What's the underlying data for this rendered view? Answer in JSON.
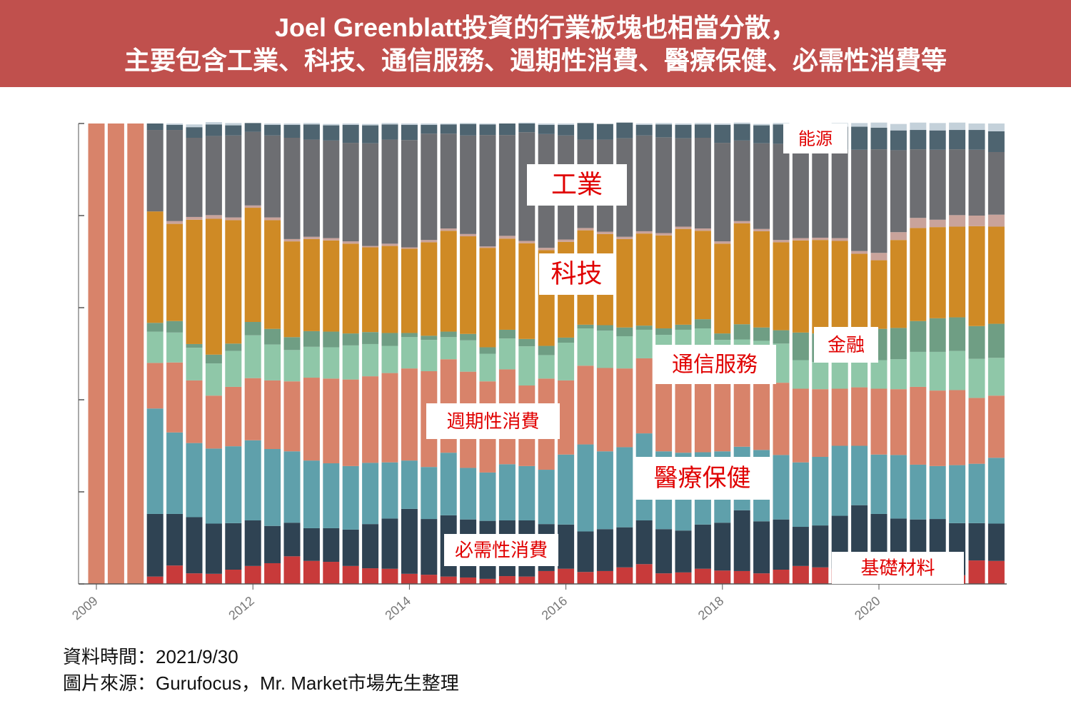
{
  "chart_data": {
    "type": "stacked_bar",
    "title": "Joel Greenblatt投資的行業板塊也相當分散，\n主要包含工業、科技、通信服務、週期性消費、醫療保健、必需性消費等",
    "notes": [
      "資料時間：2021/9/30",
      "圖片來源：Gurufocus，Mr. Market市場先生整理"
    ],
    "categories": [
      "2009",
      null,
      null,
      null,
      null,
      null,
      null,
      null,
      "2012",
      null,
      null,
      null,
      null,
      null,
      null,
      null,
      "2014",
      null,
      null,
      null,
      null,
      null,
      null,
      null,
      "2016",
      null,
      null,
      null,
      null,
      null,
      null,
      null,
      "2018",
      null,
      null,
      null,
      null,
      null,
      null,
      null,
      "2020",
      null,
      null,
      null,
      null,
      null,
      null
    ],
    "ylim": [
      0,
      100
    ],
    "yticks": [
      0,
      20,
      40,
      60,
      80,
      100
    ],
    "series": [
      {
        "name": "基礎材料",
        "color": "#c83a3a",
        "values": [
          0,
          0,
          0,
          1.6,
          4.0,
          2.3,
          2.2,
          3.1,
          3.9,
          4.5,
          6.0,
          5.0,
          4.8,
          3.9,
          3.4,
          3.3,
          2.2,
          2.0,
          1.6,
          1.4,
          1.1,
          1.7,
          1.6,
          2.8,
          3.3,
          2.6,
          2.8,
          3.6,
          4.3,
          2.3,
          2.5,
          3.3,
          2.9,
          2.8,
          2.3,
          3.1,
          3.9,
          3.6,
          3.3,
          2.8,
          2.6,
          2.3,
          1.9,
          1.7,
          1.9,
          5.1,
          5.0
        ]
      },
      {
        "name": "必需性消費",
        "color": "#2f4353",
        "values": [
          0,
          0,
          0,
          13.6,
          11.2,
          12.2,
          10.9,
          10.1,
          9.9,
          8.1,
          7.3,
          7.1,
          7.3,
          7.9,
          9.6,
          10.9,
          14.1,
          12.1,
          13.3,
          12.6,
          12.6,
          12.1,
          12.2,
          10.2,
          9.6,
          8.8,
          9.1,
          8.7,
          9.5,
          9.6,
          9.1,
          9.6,
          10.4,
          13.2,
          11.3,
          10.9,
          8.5,
          9.1,
          11.5,
          14.3,
          12.6,
          11.9,
          12.1,
          12.4,
          11.3,
          8.1,
          8.1
        ]
      },
      {
        "name": "醫療保健",
        "color": "#5fa0ab",
        "values": [
          0,
          0,
          0,
          22.9,
          17.7,
          16.1,
          16.3,
          16.7,
          17.4,
          16.7,
          15.5,
          14.7,
          14.1,
          13.8,
          13.3,
          12.2,
          10.5,
          11.3,
          13.6,
          11.2,
          10.5,
          12.2,
          11.8,
          11.8,
          15.2,
          18.9,
          16.9,
          17.4,
          18.9,
          16.9,
          16.9,
          15.7,
          15.5,
          13.8,
          15.5,
          14.0,
          14.0,
          14.9,
          15.2,
          12.9,
          12.9,
          13.8,
          11.9,
          11.5,
          12.6,
          12.9,
          14.3
        ]
      },
      {
        "name": "週期性消費",
        "color": "#d8836a",
        "values": [
          100,
          100,
          100,
          9.9,
          15.2,
          13.6,
          11.5,
          12.9,
          13.5,
          14.9,
          15.2,
          18.0,
          18.4,
          18.8,
          18.8,
          19.4,
          20.0,
          20.8,
          20.3,
          20.9,
          19.8,
          20.6,
          17.5,
          19.8,
          16.1,
          17.1,
          18.1,
          17.1,
          16.3,
          18.0,
          18.3,
          18.8,
          17.5,
          17.7,
          18.0,
          15.7,
          16.0,
          14.7,
          12.4,
          12.7,
          14.3,
          14.3,
          16.9,
          16.4,
          16.3,
          14.3,
          13.5
        ]
      },
      {
        "name": "通信服務",
        "color": "#8fc7a8",
        "values": [
          0,
          0,
          0,
          6.8,
          6.5,
          7.1,
          7.0,
          7.8,
          9.3,
          7.8,
          6.8,
          6.7,
          6.8,
          7.4,
          7.0,
          5.9,
          6.8,
          6.8,
          4.8,
          6.8,
          6.0,
          6.7,
          8.5,
          5.1,
          8.2,
          8.1,
          8.1,
          7.0,
          6.2,
          7.3,
          8.4,
          8.1,
          6.7,
          5.6,
          5.7,
          8.5,
          6.2,
          5.9,
          6.2,
          5.9,
          6.2,
          6.5,
          7.6,
          8.4,
          8.5,
          8.5,
          8.2
        ]
      },
      {
        "name": "金融",
        "color": "#6f9e84",
        "values": [
          0,
          0,
          0,
          1.9,
          2.5,
          0.8,
          1.9,
          1.6,
          2.9,
          3.4,
          2.8,
          3.4,
          3.4,
          2.6,
          2.6,
          2.8,
          0.9,
          0.9,
          1.2,
          1.4,
          1.4,
          1.9,
          1.6,
          2.0,
          1.1,
          0.8,
          1.2,
          1.9,
          0.9,
          1.4,
          1.1,
          2.0,
          1.4,
          3.3,
          2.9,
          2.9,
          6.0,
          6.2,
          6.4,
          6.5,
          6.8,
          6.8,
          6.7,
          7.3,
          7.3,
          7.1,
          7.4
        ]
      },
      {
        "name": "科技",
        "color": "#cf8a25",
        "values": [
          0,
          0,
          0,
          24.2,
          21.1,
          27.0,
          29.5,
          26.8,
          24.8,
          23.6,
          20.8,
          20.0,
          19.8,
          19.5,
          18.4,
          18.9,
          18.3,
          20.3,
          21.9,
          21.2,
          21.6,
          19.8,
          20.8,
          20.8,
          20.8,
          20.5,
          19.8,
          19.2,
          20.0,
          20.2,
          20.8,
          19.2,
          19.5,
          21.9,
          20.9,
          19.1,
          20.0,
          20.3,
          19.5,
          16.6,
          14.9,
          19.1,
          20.2,
          19.8,
          19.7,
          21.7,
          21.1
        ]
      },
      {
        "color": "#c9a39b",
        "values": [
          0,
          0,
          0,
          0,
          0.6,
          0.6,
          0.8,
          0.6,
          0.5,
          0.6,
          0.5,
          0.5,
          0.5,
          0.5,
          0.3,
          0.5,
          0.3,
          0.5,
          0.5,
          0.5,
          0.3,
          0.6,
          0.5,
          0.5,
          0.5,
          0.5,
          0.5,
          0.5,
          0.5,
          0.5,
          0.5,
          0.5,
          0.5,
          0.5,
          0.5,
          0.5,
          0.5,
          0.5,
          0.6,
          0.6,
          1.6,
          1.7,
          2.2,
          1.6,
          2.5,
          2.3,
          2.6
        ]
      },
      {
        "name": "工業",
        "color": "#6d6e72",
        "values": [
          0,
          0,
          0,
          17.7,
          19.8,
          17.2,
          17.2,
          17.8,
          16.0,
          17.8,
          22.0,
          21.1,
          21.2,
          21.4,
          22.3,
          22.6,
          23.3,
          23.1,
          20.6,
          21.4,
          24.2,
          21.9,
          23.6,
          24.7,
          22.6,
          19.2,
          20.0,
          21.4,
          20.8,
          20.8,
          19.2,
          19.7,
          21.4,
          17.5,
          18.6,
          20.9,
          19.8,
          19.5,
          19.2,
          22.0,
          22.5,
          17.8,
          14.9,
          15.2,
          14.3,
          14.3,
          13.6
        ]
      },
      {
        "name": "能源",
        "color": "#4e6470",
        "values": [
          0,
          0,
          0,
          1.4,
          1.1,
          2.3,
          2.5,
          2.2,
          1.9,
          2.3,
          2.8,
          3.3,
          3.3,
          3.9,
          3.9,
          3.3,
          3.3,
          1.9,
          2.0,
          2.5,
          2.3,
          2.5,
          1.9,
          2.0,
          2.3,
          3.6,
          3.4,
          3.4,
          2.3,
          2.8,
          2.9,
          2.9,
          3.9,
          3.6,
          3.9,
          4.2,
          4.3,
          4.7,
          5.0,
          5.0,
          4.7,
          4.3,
          4.2,
          4.2,
          4.2,
          4.3,
          4.5
        ]
      },
      {
        "color": "#c4d1da",
        "values": [
          0,
          0,
          0,
          0,
          0.3,
          0.6,
          0.5,
          0.5,
          0,
          0.3,
          0.3,
          0.3,
          0.3,
          0.3,
          0.3,
          0.3,
          0.3,
          0.3,
          0.2,
          0.2,
          0.2,
          0,
          0.2,
          0.3,
          0.3,
          0,
          0,
          0,
          0.3,
          0.3,
          0.3,
          0.3,
          0.3,
          0.3,
          0.3,
          0.3,
          0.8,
          0.6,
          0.8,
          0.8,
          1.1,
          1.4,
          1.6,
          1.6,
          1.6,
          1.4,
          1.7
        ]
      }
    ]
  }
}
